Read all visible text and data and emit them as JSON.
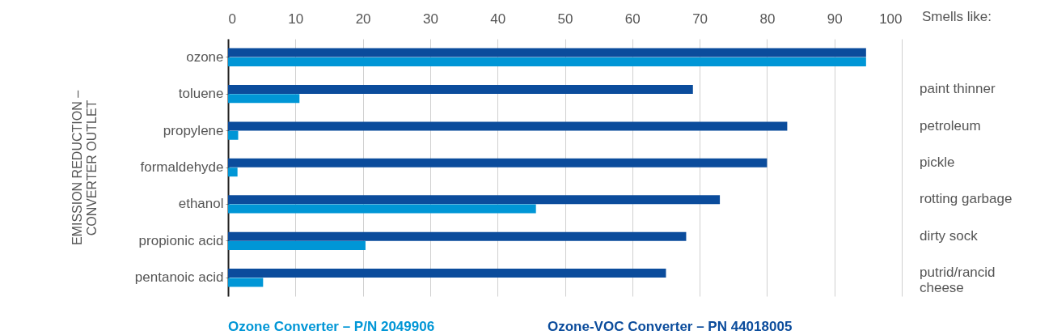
{
  "chart_data": {
    "type": "bar",
    "orientation": "horizontal",
    "categories": [
      "ozone",
      "toluene",
      "propylene",
      "formaldehyde",
      "ethanol",
      "propionic acid",
      "pentanoic acid"
    ],
    "series": [
      {
        "name": "Ozone-VOC Converter – PN 44018005",
        "color": "#0b4c9c",
        "values": [
          94.7,
          69.0,
          83.0,
          80.0,
          73.0,
          68.0,
          65.0
        ]
      },
      {
        "name": "Ozone Converter – P/N 2049906",
        "color": "#0096d6",
        "values": [
          94.7,
          10.6,
          1.5,
          1.4,
          45.7,
          20.4,
          5.2
        ]
      }
    ],
    "xlim": [
      0,
      100
    ],
    "xticks": [
      0,
      10,
      20,
      30,
      40,
      50,
      60,
      70,
      80,
      90,
      100
    ],
    "ylabel": "EMISSION REDUCTION –\nCONVERTER OUTLET",
    "grid": "x",
    "legend": "bottom",
    "annotations": [
      "Smells like:",
      "paint thinner",
      "petroleum",
      "pickle",
      "rotting garbage",
      "dirty sock",
      "putrid/rancid\ncheese"
    ]
  }
}
